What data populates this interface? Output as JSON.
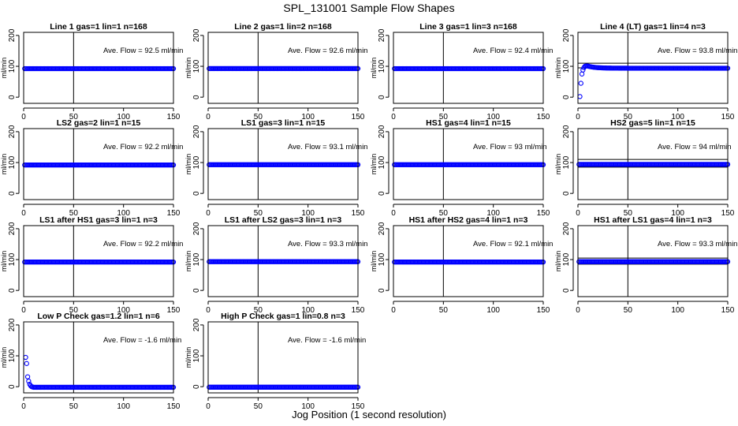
{
  "figure": {
    "title": "SPL_131001  Sample Flow Shapes",
    "xlabel": "Jog Position (1 second resolution)",
    "point_color": "#0000ff"
  },
  "chart_data": [
    {
      "type": "scatter",
      "title": "Line 1 gas=1 lin=1 n=168",
      "ylabel": "ml/min",
      "annotation": "Ave. Flow = 92.5  ml/min",
      "xlim": [
        0,
        150
      ],
      "ylim": [
        -20,
        210
      ],
      "xticks": [
        0,
        50,
        100,
        150
      ],
      "yticks": [
        0,
        100,
        200
      ],
      "hlines": [],
      "vlines": [
        50
      ],
      "shape": "flat",
      "level": 92.5
    },
    {
      "type": "scatter",
      "title": "Line 2 gas=1 lin=2 n=168",
      "ylabel": "ml/min",
      "annotation": "Ave. Flow = 92.6  ml/min",
      "xlim": [
        0,
        150
      ],
      "ylim": [
        -20,
        210
      ],
      "xticks": [
        0,
        50,
        100,
        150
      ],
      "yticks": [
        0,
        100,
        200
      ],
      "hlines": [],
      "vlines": [
        50
      ],
      "shape": "flat",
      "level": 92.6
    },
    {
      "type": "scatter",
      "title": "Line 3 gas=1 lin=3 n=168",
      "ylabel": "ml/min",
      "annotation": "Ave. Flow = 92.4  ml/min",
      "xlim": [
        0,
        150
      ],
      "ylim": [
        -20,
        210
      ],
      "xticks": [
        0,
        50,
        100,
        150
      ],
      "yticks": [
        0,
        100,
        200
      ],
      "hlines": [],
      "vlines": [
        50
      ],
      "shape": "flat",
      "level": 92.4
    },
    {
      "type": "scatter",
      "title": "Line 4 (LT) gas=1 lin=4 n=3",
      "ylabel": "ml/min",
      "annotation": "Ave. Flow = 93.8  ml/min",
      "xlim": [
        0,
        150
      ],
      "ylim": [
        -20,
        210
      ],
      "xticks": [
        0,
        50,
        100,
        150
      ],
      "yticks": [
        0,
        100,
        200
      ],
      "hlines": [
        95,
        110
      ],
      "vlines": [
        50
      ],
      "shape": "rise",
      "level": 93.8
    },
    {
      "type": "scatter",
      "title": "LS2 gas=2 lin=1 n=15",
      "ylabel": "ml/min",
      "annotation": "Ave. Flow = 92.2  ml/min",
      "xlim": [
        0,
        150
      ],
      "ylim": [
        -20,
        210
      ],
      "xticks": [
        0,
        50,
        100,
        150
      ],
      "yticks": [
        0,
        100,
        200
      ],
      "hlines": [],
      "vlines": [
        50
      ],
      "shape": "flat",
      "level": 92.2
    },
    {
      "type": "scatter",
      "title": "LS1 gas=3 lin=1 n=15",
      "ylabel": "ml/min",
      "annotation": "Ave. Flow = 93.1  ml/min",
      "xlim": [
        0,
        150
      ],
      "ylim": [
        -20,
        210
      ],
      "xticks": [
        0,
        50,
        100,
        150
      ],
      "yticks": [
        0,
        100,
        200
      ],
      "hlines": [],
      "vlines": [
        50
      ],
      "shape": "flat",
      "level": 93.1
    },
    {
      "type": "scatter",
      "title": "HS1 gas=4 lin=1 n=15",
      "ylabel": "ml/min",
      "annotation": "Ave. Flow = 93  ml/min",
      "xlim": [
        0,
        150
      ],
      "ylim": [
        -20,
        210
      ],
      "xticks": [
        0,
        50,
        100,
        150
      ],
      "yticks": [
        0,
        100,
        200
      ],
      "hlines": [],
      "vlines": [
        50
      ],
      "shape": "flat",
      "level": 93
    },
    {
      "type": "scatter",
      "title": "HS2 gas=5 lin=1 n=15",
      "ylabel": "ml/min",
      "annotation": "Ave. Flow = 94  ml/min",
      "xlim": [
        0,
        150
      ],
      "ylim": [
        -20,
        210
      ],
      "xticks": [
        0,
        50,
        100,
        150
      ],
      "yticks": [
        0,
        100,
        200
      ],
      "hlines": [
        85,
        110
      ],
      "vlines": [
        50
      ],
      "shape": "flat",
      "level": 94
    },
    {
      "type": "scatter",
      "title": "LS1 after HS1 gas=3 lin=1 n=3",
      "ylabel": "ml/min",
      "annotation": "Ave. Flow = 92.2  ml/min",
      "xlim": [
        0,
        150
      ],
      "ylim": [
        -20,
        210
      ],
      "xticks": [
        0,
        50,
        100,
        150
      ],
      "yticks": [
        0,
        100,
        200
      ],
      "hlines": [],
      "vlines": [
        50
      ],
      "shape": "flat",
      "level": 92.2
    },
    {
      "type": "scatter",
      "title": "LS1 after LS2 gas=3 lin=1 n=3",
      "ylabel": "ml/min",
      "annotation": "Ave. Flow = 93.3  ml/min",
      "xlim": [
        0,
        150
      ],
      "ylim": [
        -20,
        210
      ],
      "xticks": [
        0,
        50,
        100,
        150
      ],
      "yticks": [
        0,
        100,
        200
      ],
      "hlines": [],
      "vlines": [
        50
      ],
      "shape": "flat",
      "level": 93.3
    },
    {
      "type": "scatter",
      "title": "HS1 after HS2 gas=4 lin=1 n=3",
      "ylabel": "ml/min",
      "annotation": "Ave. Flow = 92.1  ml/min",
      "xlim": [
        0,
        150
      ],
      "ylim": [
        -20,
        210
      ],
      "xticks": [
        0,
        50,
        100,
        150
      ],
      "yticks": [
        0,
        100,
        200
      ],
      "hlines": [],
      "vlines": [
        50
      ],
      "shape": "flat",
      "level": 92.1
    },
    {
      "type": "scatter",
      "title": "HS1 after LS1 gas=4 lin=1 n=3",
      "ylabel": "ml/min",
      "annotation": "Ave. Flow = 93.3  ml/min",
      "xlim": [
        0,
        150
      ],
      "ylim": [
        -20,
        210
      ],
      "xticks": [
        0,
        50,
        100,
        150
      ],
      "yticks": [
        0,
        100,
        200
      ],
      "hlines": [
        85,
        105
      ],
      "vlines": [
        50
      ],
      "shape": "flat",
      "level": 93.3
    },
    {
      "type": "scatter",
      "title": "Low P Check gas=1.2 lin=1 n=6",
      "ylabel": "ml/min",
      "annotation": "Ave. Flow = -1.6  ml/min",
      "xlim": [
        0,
        150
      ],
      "ylim": [
        -20,
        210
      ],
      "xticks": [
        0,
        50,
        100,
        150
      ],
      "yticks": [
        0,
        100,
        200
      ],
      "hlines": [],
      "vlines": [
        50
      ],
      "shape": "decay",
      "level": -1.6
    },
    {
      "type": "scatter",
      "title": "High P Check gas=1 lin=0.8 n=3",
      "ylabel": "ml/min",
      "annotation": "Ave. Flow = -1.6  ml/min",
      "xlim": [
        0,
        150
      ],
      "ylim": [
        -20,
        210
      ],
      "xticks": [
        0,
        50,
        100,
        150
      ],
      "yticks": [
        0,
        100,
        200
      ],
      "hlines": [],
      "vlines": [
        50
      ],
      "shape": "flat",
      "level": -1.6
    }
  ]
}
